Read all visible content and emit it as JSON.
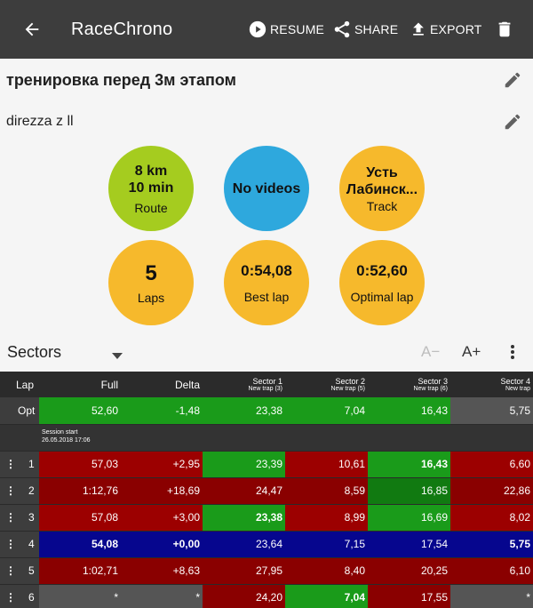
{
  "appbar": {
    "title": "RaceChrono",
    "resume_label": "RESUME",
    "share_label": "SHARE",
    "export_label": "EXPORT"
  },
  "session": {
    "title": "тренировка перед 3м этапом",
    "car": "direzza z ll"
  },
  "stats": {
    "route": {
      "line1": "8 km",
      "line2": "10 min",
      "label": "Route"
    },
    "videos": {
      "value": "No videos"
    },
    "track": {
      "line1": "Усть",
      "line2": "Лабинск...",
      "label": "Track"
    },
    "laps": {
      "value": "5",
      "label": "Laps"
    },
    "best_lap": {
      "value": "0:54,08",
      "label": "Best lap"
    },
    "optimal_lap": {
      "value": "0:52,60",
      "label": "Optimal lap"
    }
  },
  "view": {
    "selector": "Sectors",
    "font_decrease": "A−",
    "font_increase": "A+"
  },
  "table": {
    "headers": {
      "lap": "Lap",
      "full": "Full",
      "delta": "Delta",
      "s1": "Sector 1",
      "s1_sub": "New trap (3)",
      "s2": "Sector 2",
      "s2_sub": "New trap (5)",
      "s3": "Sector 3",
      "s3_sub": "New trap (6)",
      "s4": "Sector 4",
      "s4_sub": "New trap"
    },
    "opt": {
      "lap": "Opt",
      "full": "52,60",
      "delta": "-1,48",
      "s1": "23,38",
      "s2": "7,04",
      "s3": "16,43",
      "s4": "5,75"
    },
    "session_start": {
      "label": "Session start",
      "date": "26.05.2018 17:06"
    },
    "rows": [
      {
        "lap": "1",
        "full": "57,03",
        "delta": "+2,95",
        "s1": "23,39",
        "s2": "10,61",
        "s3": "16,43",
        "s4": "6,60"
      },
      {
        "lap": "2",
        "full": "1:12,76",
        "delta": "+18,69",
        "s1": "24,47",
        "s2": "8,59",
        "s3": "16,85",
        "s4": "22,86"
      },
      {
        "lap": "3",
        "full": "57,08",
        "delta": "+3,00",
        "s1": "23,38",
        "s2": "8,99",
        "s3": "16,69",
        "s4": "8,02"
      },
      {
        "lap": "4",
        "full": "54,08",
        "delta": "+0,00",
        "s1": "23,64",
        "s2": "7,15",
        "s3": "17,54",
        "s4": "5,75"
      },
      {
        "lap": "5",
        "full": "1:02,71",
        "delta": "+8,63",
        "s1": "27,95",
        "s2": "8,40",
        "s3": "20,25",
        "s4": "6,10"
      },
      {
        "lap": "6",
        "full": "*",
        "delta": "*",
        "s1": "24,20",
        "s2": "7,04",
        "s3": "17,55",
        "s4": "*"
      }
    ]
  },
  "colors": {
    "appbar": "#3d3d3d",
    "green": "#a5cc1f",
    "blue": "#2ea8dd",
    "orange": "#f6b92c",
    "best_lap_row": "#06068e"
  }
}
